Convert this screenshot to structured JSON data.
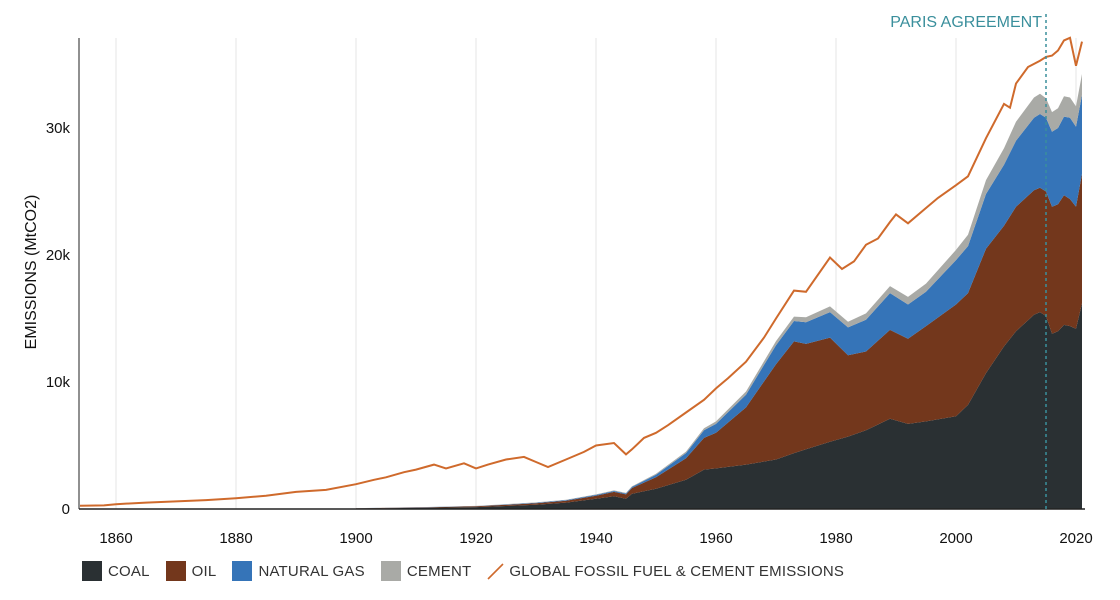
{
  "colors": {
    "coal": "#2a3033",
    "oil": "#73371c",
    "gas": "#3574b8",
    "cement": "#a9aaa6",
    "total": "#cf6a2c",
    "annotation": "#3a8f9c",
    "grid": "#e6e6e6"
  },
  "chart_data": {
    "type": "area",
    "stacked": true,
    "ylabel": "EMISSIONS (MtCO2)",
    "xlim": [
      1854,
      2021
    ],
    "ylim": [
      0,
      37000
    ],
    "x_ticks": [
      1860,
      1880,
      1900,
      1920,
      1940,
      1960,
      1980,
      2000,
      2020
    ],
    "x_tick_labels": [
      "1860",
      "1880",
      "1900",
      "1920",
      "1940",
      "1960",
      "1980",
      "2000",
      "2020"
    ],
    "y_ticks": [
      0,
      10000,
      20000,
      30000
    ],
    "y_tick_labels": [
      "0",
      "10k",
      "20k",
      "30k"
    ],
    "grid": "vertical",
    "annotation": {
      "x": 2015,
      "label": "PARIS AGREEMENT"
    },
    "x": [
      1900,
      1910,
      1920,
      1930,
      1935,
      1940,
      1943,
      1945,
      1946,
      1950,
      1955,
      1958,
      1960,
      1965,
      1970,
      1973,
      1975,
      1979,
      1982,
      1985,
      1989,
      1992,
      1995,
      2000,
      2002,
      2005,
      2008,
      2010,
      2013,
      2014,
      2015,
      2016,
      2017,
      2018,
      2019,
      2020,
      2021
    ],
    "series": [
      {
        "name": "COAL",
        "key": "coal",
        "values": [
          50,
          90,
          150,
          330,
          500,
          800,
          1000,
          800,
          1200,
          1600,
          2300,
          3100,
          3200,
          3500,
          3900,
          4400,
          4700,
          5300,
          5700,
          6200,
          7100,
          6700,
          6900,
          7300,
          8200,
          10700,
          12800,
          14000,
          15300,
          15500,
          15200,
          13800,
          14000,
          14500,
          14400,
          14200,
          16200
        ]
      },
      {
        "name": "OIL",
        "key": "oil",
        "values": [
          10,
          30,
          60,
          120,
          150,
          250,
          350,
          350,
          450,
          900,
          1700,
          2500,
          2800,
          4500,
          7500,
          8800,
          8300,
          8200,
          6400,
          6200,
          7000,
          6700,
          7500,
          8800,
          8800,
          9800,
          9500,
          9800,
          9800,
          9800,
          9800,
          10000,
          10000,
          10200,
          10000,
          9600,
          10200
        ]
      },
      {
        "name": "NATURAL GAS",
        "key": "gas",
        "values": [
          5,
          10,
          20,
          40,
          50,
          60,
          70,
          70,
          90,
          200,
          400,
          600,
          700,
          1000,
          1500,
          1600,
          1700,
          2000,
          2200,
          2500,
          2900,
          2700,
          2700,
          3500,
          3700,
          4300,
          4800,
          5200,
          5700,
          5800,
          5800,
          5900,
          6000,
          6200,
          6400,
          6300,
          6200
        ]
      },
      {
        "name": "CEMENT",
        "key": "cement",
        "values": [
          5,
          8,
          15,
          30,
          35,
          40,
          45,
          45,
          50,
          80,
          120,
          160,
          200,
          250,
          320,
          350,
          400,
          450,
          450,
          500,
          550,
          600,
          650,
          800,
          900,
          1100,
          1300,
          1500,
          1600,
          1600,
          1550,
          1550,
          1550,
          1600,
          1600,
          1600,
          1650
        ]
      }
    ],
    "total_series": {
      "name": "GLOBAL FOSSIL FUEL & CEMENT EMISSIONS",
      "key": "total",
      "x": [
        1854,
        1858,
        1860,
        1865,
        1870,
        1875,
        1880,
        1885,
        1890,
        1895,
        1900,
        1903,
        1905,
        1908,
        1910,
        1913,
        1915,
        1918,
        1920,
        1922,
        1925,
        1928,
        1930,
        1932,
        1935,
        1938,
        1940,
        1943,
        1945,
        1946,
        1948,
        1950,
        1952,
        1955,
        1958,
        1960,
        1962,
        1965,
        1968,
        1970,
        1973,
        1975,
        1979,
        1981,
        1983,
        1985,
        1987,
        1989,
        1990,
        1992,
        1995,
        1997,
        2000,
        2002,
        2005,
        2008,
        2009,
        2010,
        2012,
        2014,
        2015,
        2016,
        2017,
        2018,
        2019,
        2020,
        2021
      ],
      "values": [
        250,
        280,
        380,
        500,
        600,
        700,
        850,
        1050,
        1350,
        1500,
        1950,
        2300,
        2500,
        2900,
        3100,
        3500,
        3200,
        3600,
        3200,
        3500,
        3900,
        4100,
        3700,
        3300,
        3900,
        4500,
        5000,
        5200,
        4300,
        4700,
        5600,
        6000,
        6600,
        7600,
        8600,
        9500,
        10300,
        11600,
        13500,
        15000,
        17200,
        17100,
        19800,
        18900,
        19500,
        20800,
        21300,
        22600,
        23200,
        22500,
        23700,
        24500,
        25500,
        26200,
        29200,
        31900,
        31600,
        33500,
        34800,
        35300,
        35600,
        35700,
        36100,
        36900,
        37100,
        34900,
        36800
      ]
    },
    "legend": {
      "placement": "bottom-left",
      "entries": [
        "COAL",
        "OIL",
        "NATURAL GAS",
        "CEMENT",
        "GLOBAL FOSSIL FUEL & CEMENT EMISSIONS"
      ]
    }
  }
}
